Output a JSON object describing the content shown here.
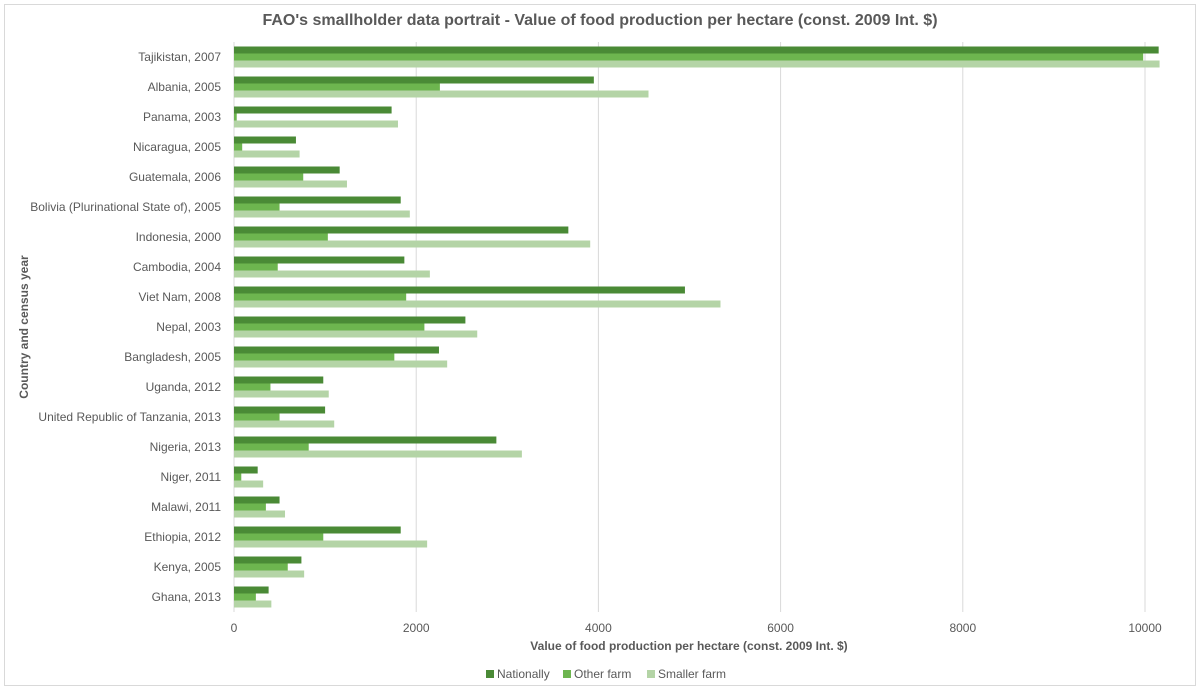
{
  "chart_data": {
    "type": "bar",
    "orientation": "horizontal",
    "title": "FAO's smallholder data portrait - Value of food production per hectare (const. 2009 Int. $)",
    "xlabel": "Value of food production per hectare (const. 2009 Int. $)",
    "ylabel": "Country and census year",
    "xlim": [
      0,
      10000
    ],
    "x_ticks": [
      "0",
      "2000",
      "4000",
      "6000",
      "8000",
      "10000"
    ],
    "grid": "vertical",
    "legend_position": "bottom",
    "categories": [
      "Tajikistan, 2007",
      "Albania, 2005",
      "Panama, 2003",
      "Nicaragua, 2005",
      "Guatemala, 2006",
      "Bolivia (Plurinational State of), 2005",
      "Indonesia, 2000",
      "Cambodia, 2004",
      "Viet Nam, 2008",
      "Nepal, 2003",
      "Bangladesh, 2005",
      "Uganda, 2012",
      "United Republic of Tanzania, 2013",
      "Nigeria, 2013",
      "Niger, 2011",
      "Malawi, 2011",
      "Ethiopia, 2012",
      "Kenya, 2005",
      "Ghana, 2013"
    ],
    "series": [
      {
        "name": "Nationally",
        "color": "#4a8a36",
        "values": [
          10150,
          3950,
          1730,
          680,
          1160,
          1830,
          3670,
          1870,
          4950,
          2540,
          2250,
          980,
          1000,
          2880,
          260,
          500,
          1830,
          740,
          380
        ]
      },
      {
        "name": "Other farm",
        "color": "#6db54f",
        "values": [
          9980,
          2260,
          30,
          90,
          760,
          500,
          1030,
          480,
          1890,
          2090,
          1760,
          400,
          500,
          820,
          80,
          350,
          980,
          590,
          240
        ]
      },
      {
        "name": "Smaller farm",
        "color": "#b4d4a6",
        "values": [
          10160,
          4550,
          1800,
          720,
          1240,
          1930,
          3910,
          2150,
          5340,
          2670,
          2340,
          1040,
          1100,
          3160,
          320,
          560,
          2120,
          770,
          410
        ]
      }
    ]
  }
}
